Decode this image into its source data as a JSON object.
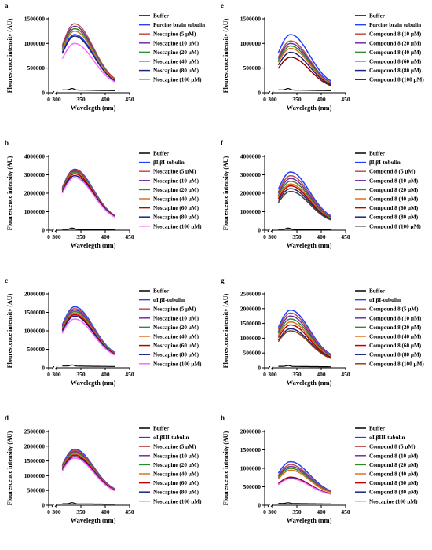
{
  "chart_data": [
    {
      "panel": "a",
      "type": "line",
      "xlabel": "Wavelegth (nm)",
      "ylabel": "Flourescence intensity (AU)",
      "xlim": [
        0,
        450
      ],
      "ylim": [
        0,
        1500000
      ],
      "xticks": [
        "0",
        "300",
        "350",
        "400",
        "450"
      ],
      "yticks": [
        "0",
        "500000",
        "1000000",
        "1500000"
      ],
      "legend": "right",
      "series": [
        {
          "name": "Buffer",
          "color": "#000000",
          "peak": 90000,
          "end": 60000,
          "kind": "buffer"
        },
        {
          "name": "Porcine brain tubulin",
          "color": "#1f3fff",
          "peak": 1180000,
          "end": 160000
        },
        {
          "name": "Noscapine (5 μM)",
          "color": "#c0504d",
          "peak": 1400000,
          "end": 160000
        },
        {
          "name": "Noscapine (10 μM)",
          "color": "#7030a0",
          "peak": 1350000,
          "end": 150000
        },
        {
          "name": "Noscapine (20 μM)",
          "color": "#2e8b2e",
          "peak": 1300000,
          "end": 150000
        },
        {
          "name": "Noscapine (40 μM)",
          "color": "#e07020",
          "peak": 1250000,
          "end": 150000
        },
        {
          "name": "Noscapine (80 μM)",
          "color": "#1a237e",
          "peak": 1150000,
          "end": 140000
        },
        {
          "name": "Noscapine (100 μM)",
          "color": "#ff66ff",
          "peak": 1000000,
          "end": 130000
        }
      ]
    },
    {
      "panel": "e",
      "type": "line",
      "xlabel": "Wavelegth (nm)",
      "ylabel": "Flourescence intensity (AU)",
      "xlim": [
        0,
        450
      ],
      "ylim": [
        0,
        1500000
      ],
      "xticks": [
        "0",
        "300",
        "350",
        "400",
        "450"
      ],
      "yticks": [
        "0",
        "500000",
        "1000000",
        "1500000"
      ],
      "legend": "right",
      "series": [
        {
          "name": "Buffer",
          "color": "#000000",
          "peak": 90000,
          "end": 60000,
          "kind": "buffer"
        },
        {
          "name": "Porcine brain tubulin",
          "color": "#1f3fff",
          "peak": 1180000,
          "end": 130000
        },
        {
          "name": "Compound 8 (10 μM)",
          "color": "#c0504d",
          "peak": 1050000,
          "end": 110000
        },
        {
          "name": "Compound 8 (20 μM)",
          "color": "#7030a0",
          "peak": 1000000,
          "end": 110000
        },
        {
          "name": "Compound 8 (40 μM)",
          "color": "#2e8b2e",
          "peak": 950000,
          "end": 100000
        },
        {
          "name": "Compound 8 (60 μM)",
          "color": "#e07020",
          "peak": 900000,
          "end": 100000
        },
        {
          "name": "Compound 8 (80 μM)",
          "color": "#1a237e",
          "peak": 820000,
          "end": 90000
        },
        {
          "name": "Compound 8 (100 μM)",
          "color": "#8b0000",
          "peak": 720000,
          "end": 80000
        }
      ]
    },
    {
      "panel": "b",
      "type": "line",
      "xlabel": "Wavelegth (nm)",
      "ylabel": "Flourescence intensity (AU)",
      "xlim": [
        0,
        450
      ],
      "ylim": [
        0,
        4000000
      ],
      "xticks": [
        "0",
        "300",
        "350",
        "400",
        "450"
      ],
      "yticks": [
        "0",
        "1000000",
        "2000000",
        "3000000",
        "4000000"
      ],
      "legend": "right",
      "series": [
        {
          "name": "Buffer",
          "color": "#000000",
          "peak": 120000,
          "end": 50000,
          "kind": "buffer"
        },
        {
          "name": "βI,βI-tubulin",
          "color": "#1f3fff",
          "peak": 3300000,
          "end": 500000
        },
        {
          "name": "Noscapine (5 μM)",
          "color": "#c0504d",
          "peak": 3250000,
          "end": 500000
        },
        {
          "name": "Noscapine (10 μM)",
          "color": "#7030a0",
          "peak": 3200000,
          "end": 490000
        },
        {
          "name": "Noscapine (20 μM)",
          "color": "#2e8b2e",
          "peak": 3150000,
          "end": 490000
        },
        {
          "name": "Noscapine (40 μM)",
          "color": "#e07020",
          "peak": 3100000,
          "end": 480000
        },
        {
          "name": "Noscapine (60 μM)",
          "color": "#c00000",
          "peak": 3050000,
          "end": 480000
        },
        {
          "name": "Noscapine (80 μM)",
          "color": "#1a237e",
          "peak": 2950000,
          "end": 470000
        },
        {
          "name": "Noscapine (100 μM)",
          "color": "#ff66ff",
          "peak": 2850000,
          "end": 460000
        }
      ]
    },
    {
      "panel": "f",
      "type": "line",
      "xlabel": "Wavelegth (nm)",
      "ylabel": "Flourescence intensity (AU)",
      "xlim": [
        0,
        450
      ],
      "ylim": [
        0,
        4000000
      ],
      "xticks": [
        "0",
        "300",
        "350",
        "400",
        "450"
      ],
      "yticks": [
        "0",
        "1000000",
        "2000000",
        "3000000",
        "4000000"
      ],
      "legend": "right",
      "series": [
        {
          "name": "Buffer",
          "color": "#000000",
          "peak": 120000,
          "end": 50000,
          "kind": "buffer"
        },
        {
          "name": "βI,βI-tubulin",
          "color": "#1f3fff",
          "peak": 3150000,
          "end": 500000
        },
        {
          "name": "Compond 8 (5 μM)",
          "color": "#c0504d",
          "peak": 2950000,
          "end": 480000
        },
        {
          "name": "Compond 8 (10 μM)",
          "color": "#7030a0",
          "peak": 2800000,
          "end": 460000
        },
        {
          "name": "Compond 8 (20 μM)",
          "color": "#2e8b2e",
          "peak": 2650000,
          "end": 440000
        },
        {
          "name": "Compond 8 (40 μM)",
          "color": "#e07020",
          "peak": 2500000,
          "end": 420000
        },
        {
          "name": "Compond 8 (60 μM)",
          "color": "#c00000",
          "peak": 2400000,
          "end": 410000
        },
        {
          "name": "Compond 8 (80 μM)",
          "color": "#1a237e",
          "peak": 2250000,
          "end": 400000
        },
        {
          "name": "Compond 8 (100 μM)",
          "color": "#444444",
          "peak": 2100000,
          "end": 380000
        }
      ]
    },
    {
      "panel": "c",
      "type": "line",
      "xlabel": "Wavelegth (nm)",
      "ylabel": "Flourescence intensity (AU)",
      "xlim": [
        0,
        450
      ],
      "ylim": [
        0,
        2000000
      ],
      "xticks": [
        "0",
        "300",
        "350",
        "400",
        "450"
      ],
      "yticks": [
        "0",
        "500000",
        "1000000",
        "1500000",
        "2000000"
      ],
      "legend": "right",
      "series": [
        {
          "name": "Buffer",
          "color": "#000000",
          "peak": 80000,
          "end": 50000,
          "kind": "buffer"
        },
        {
          "name": "αI,βI-tubulin",
          "color": "#1f3fff",
          "peak": 1650000,
          "end": 270000
        },
        {
          "name": "Noscapine (5 μM)",
          "color": "#c0504d",
          "peak": 1600000,
          "end": 265000
        },
        {
          "name": "Noscapine (10 μM)",
          "color": "#7030a0",
          "peak": 1560000,
          "end": 260000
        },
        {
          "name": "Noscapine (20 μM)",
          "color": "#2e8b2e",
          "peak": 1520000,
          "end": 255000
        },
        {
          "name": "Noscapine (40 μM)",
          "color": "#e07020",
          "peak": 1480000,
          "end": 250000
        },
        {
          "name": "Noscapine (60 μM)",
          "color": "#c00000",
          "peak": 1440000,
          "end": 245000
        },
        {
          "name": "Noscapine (80 μM)",
          "color": "#1a237e",
          "peak": 1400000,
          "end": 240000
        },
        {
          "name": "Noscapine (100 μM)",
          "color": "#ff66ff",
          "peak": 1320000,
          "end": 230000
        }
      ]
    },
    {
      "panel": "g",
      "type": "line",
      "xlabel": "Wavelegth (nm)",
      "ylabel": "Flourescence intensity (AU)",
      "xlim": [
        0,
        450
      ],
      "ylim": [
        0,
        2500000
      ],
      "xticks": [
        "0",
        "300",
        "350",
        "400",
        "450"
      ],
      "yticks": [
        "0",
        "500000",
        "1000000",
        "1500000",
        "2000000",
        "2500000"
      ],
      "legend": "right",
      "series": [
        {
          "name": "Buffer",
          "color": "#000000",
          "peak": 80000,
          "end": 50000,
          "kind": "buffer"
        },
        {
          "name": "αI,βI-tubulin",
          "color": "#1f3fff",
          "peak": 1950000,
          "end": 280000
        },
        {
          "name": "Compound 8 (5 μM)",
          "color": "#c0504d",
          "peak": 1850000,
          "end": 270000
        },
        {
          "name": "Compound 8 (10 μM)",
          "color": "#7030a0",
          "peak": 1750000,
          "end": 260000
        },
        {
          "name": "Compound 8 (20 μM)",
          "color": "#2e8b2e",
          "peak": 1650000,
          "end": 250000
        },
        {
          "name": "Compound 8 (40 μM)",
          "color": "#e07020",
          "peak": 1550000,
          "end": 240000
        },
        {
          "name": "Compound 8 (60 μM)",
          "color": "#c00000",
          "peak": 1450000,
          "end": 230000
        },
        {
          "name": "Compound 8 (80 μM)",
          "color": "#1a237e",
          "peak": 1320000,
          "end": 220000
        },
        {
          "name": "Compound 8 (100 μM)",
          "color": "#8b4513",
          "peak": 1250000,
          "end": 210000
        }
      ]
    },
    {
      "panel": "d",
      "type": "line",
      "xlabel": "Wavelegth (nm)",
      "ylabel": "Flourescence intensity (AU)",
      "xlim": [
        0,
        450
      ],
      "ylim": [
        0,
        2500000
      ],
      "xticks": [
        "0",
        "300",
        "350",
        "400",
        "450"
      ],
      "yticks": [
        "0",
        "500000",
        "1000000",
        "1500000",
        "2000000",
        "2500000"
      ],
      "legend": "right",
      "series": [
        {
          "name": "Buffer",
          "color": "#000000",
          "peak": 90000,
          "end": 50000,
          "kind": "buffer"
        },
        {
          "name": "αI,βIII-tubulin",
          "color": "#1f3fff",
          "peak": 1900000,
          "end": 400000
        },
        {
          "name": "Noscapine (5 μM)",
          "color": "#c0504d",
          "peak": 1860000,
          "end": 395000
        },
        {
          "name": "Noscapine (10 μM)",
          "color": "#7030a0",
          "peak": 1820000,
          "end": 390000
        },
        {
          "name": "Noscapine (20 μM)",
          "color": "#2e8b2e",
          "peak": 1780000,
          "end": 385000
        },
        {
          "name": "Noscapine (40 μM)",
          "color": "#e07020",
          "peak": 1740000,
          "end": 380000
        },
        {
          "name": "Noscapine (60 μM)",
          "color": "#c00000",
          "peak": 1700000,
          "end": 375000
        },
        {
          "name": "Noscapine (80 μM)",
          "color": "#1a237e",
          "peak": 1650000,
          "end": 370000
        },
        {
          "name": "Noscapine (100 μM)",
          "color": "#ff66ff",
          "peak": 1600000,
          "end": 360000
        }
      ]
    },
    {
      "panel": "h",
      "type": "line",
      "xlabel": "Wavelegth (nm)",
      "ylabel": "Flourescence intensity (AU)",
      "xlim": [
        0,
        450
      ],
      "ylim": [
        0,
        2000000
      ],
      "xticks": [
        "0",
        "300",
        "350",
        "400",
        "450"
      ],
      "yticks": [
        "0",
        "500000",
        "1000000",
        "1500000",
        "2000000"
      ],
      "legend": "right",
      "series": [
        {
          "name": "Buffer",
          "color": "#000000",
          "peak": 70000,
          "end": 50000,
          "kind": "buffer"
        },
        {
          "name": "αI,βIII-tubulin",
          "color": "#1f3fff",
          "peak": 1180000,
          "end": 300000
        },
        {
          "name": "Compond 8 (5 μM)",
          "color": "#c0504d",
          "peak": 1100000,
          "end": 290000
        },
        {
          "name": "Compond 8 (10 μM)",
          "color": "#7030a0",
          "peak": 1050000,
          "end": 285000
        },
        {
          "name": "Compond 8 (20 μM)",
          "color": "#2e8b2e",
          "peak": 1000000,
          "end": 280000
        },
        {
          "name": "Compond 8 (40 μM)",
          "color": "#e07020",
          "peak": 950000,
          "end": 275000
        },
        {
          "name": "Compond 8 (60 μM)",
          "color": "#c00000",
          "peak": 760000,
          "end": 260000
        },
        {
          "name": "Compond 8 (80 μM)",
          "color": "#1a237e",
          "peak": 740000,
          "end": 255000
        },
        {
          "name": "Noscapine (100 μM)",
          "color": "#ff66ff",
          "peak": 720000,
          "end": 250000
        }
      ]
    }
  ]
}
